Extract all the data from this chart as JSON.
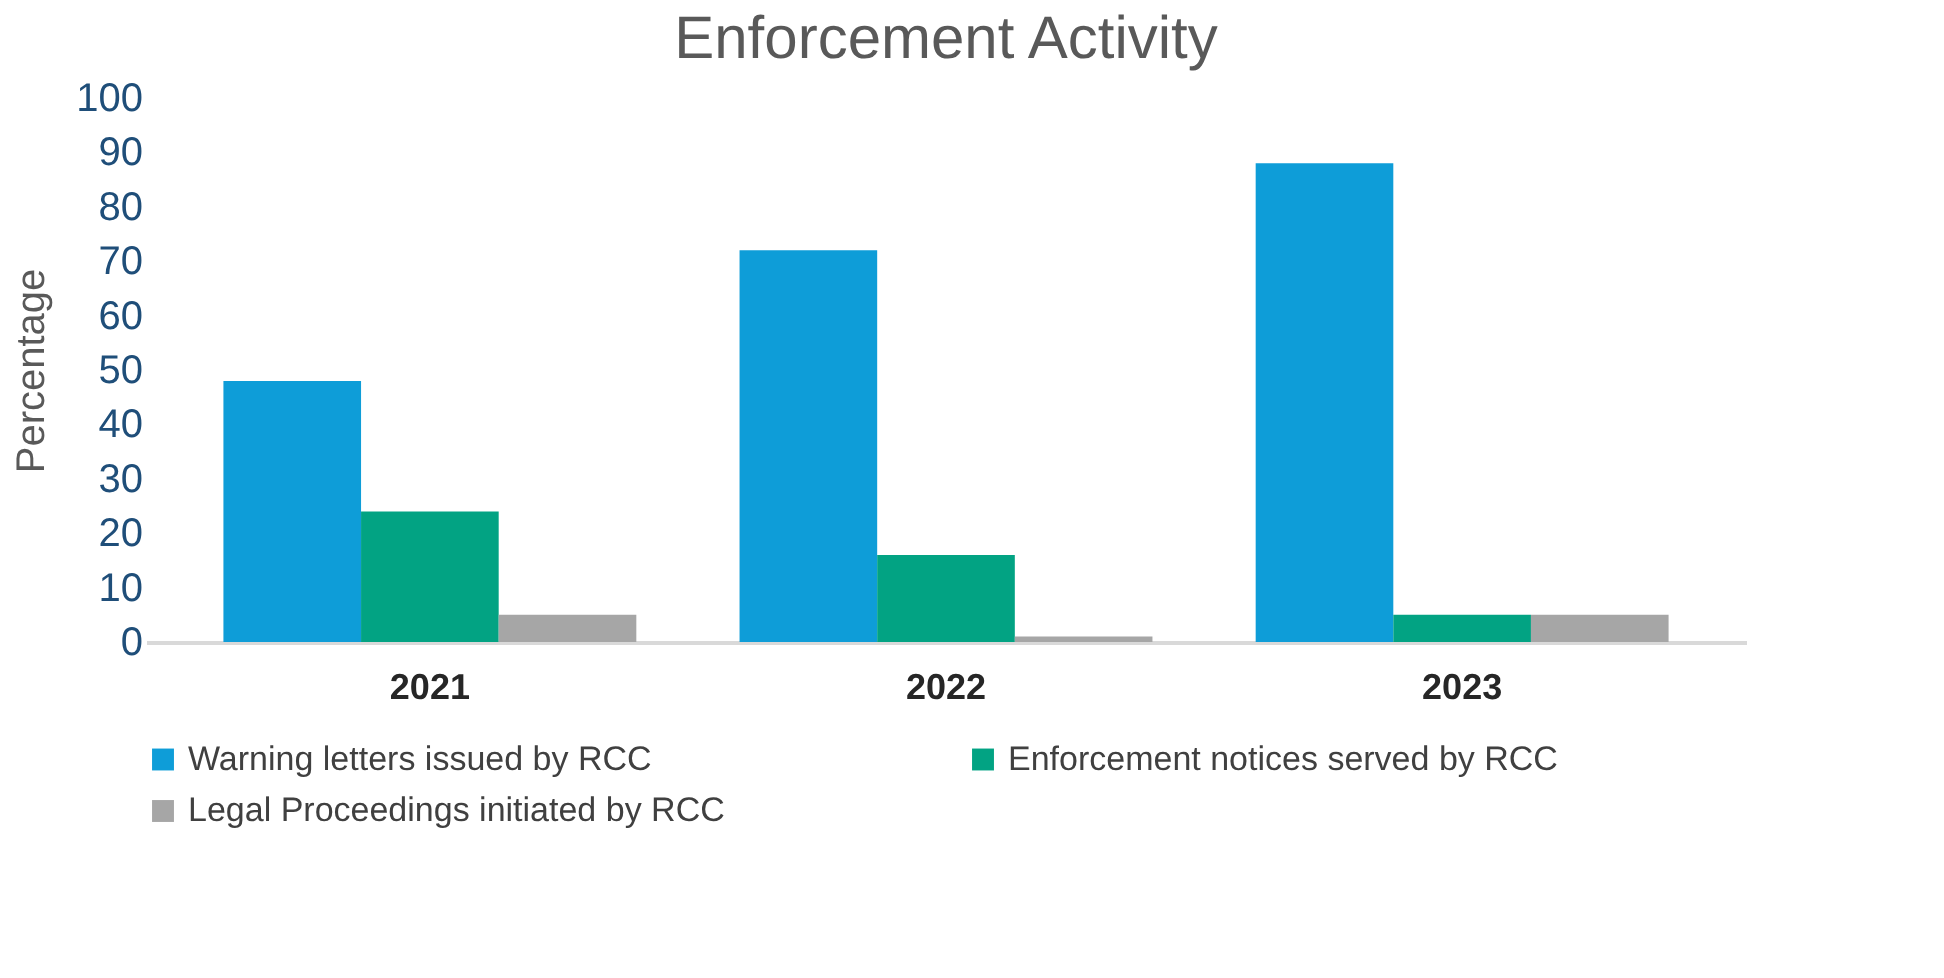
{
  "chart_data": {
    "type": "bar",
    "title": "Enforcement Activity",
    "ylabel": "Percentage",
    "categories": [
      "2021",
      "2022",
      "2023"
    ],
    "series": [
      {
        "name": "Warning letters issued by RCC",
        "color": "#0e9dd8",
        "values": [
          48,
          72,
          88
        ]
      },
      {
        "name": "Enforcement notices served by RCC",
        "color": "#02a383",
        "values": [
          24,
          16,
          5
        ]
      },
      {
        "name": "Legal Proceedings initiated by RCC",
        "color": "#a6a6a6",
        "values": [
          5,
          1,
          5
        ]
      }
    ],
    "ylim": [
      0,
      100
    ],
    "yticks": [
      0,
      10,
      20,
      30,
      40,
      50,
      60,
      70,
      80,
      90,
      100
    ],
    "grid": false,
    "legend": "bottom"
  }
}
